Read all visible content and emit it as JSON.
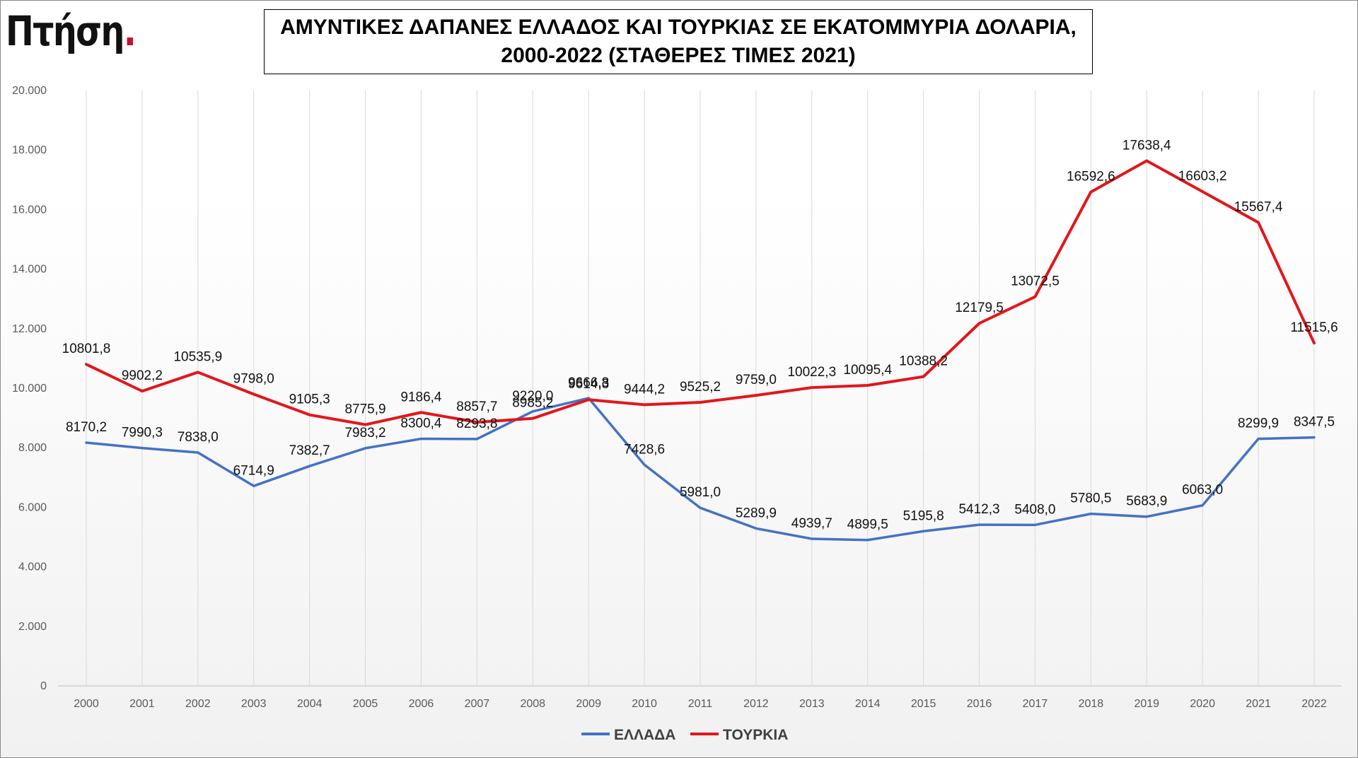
{
  "logo": {
    "text": "Πτήση",
    "dot": "."
  },
  "title": {
    "line1": "ΑΜΥΝΤΙΚΕΣ ΔΑΠΑΝΕΣ ΕΛΛΑΔΟΣ ΚΑΙ ΤΟΥΡΚΙΑΣ ΣΕ ΕΚΑΤΟΜΜΥΡΙΑ ΔΟΛΑΡΙΑ,",
    "line2": "2000-2022 (ΣΤΑΘΕΡΕΣ ΤΙΜΕΣ 2021)"
  },
  "chart_data": {
    "type": "line",
    "title": "ΑΜΥΝΤΙΚΕΣ ΔΑΠΑΝΕΣ ΕΛΛΑΔΟΣ ΚΑΙ ΤΟΥΡΚΙΑΣ ΣΕ ΕΚΑΤΟΜΜΥΡΙΑ ΔΟΛΑΡΙΑ, 2000-2022 (ΣΤΑΘΕΡΕΣ ΤΙΜΕΣ 2021)",
    "categories": [
      "2000",
      "2001",
      "2002",
      "2003",
      "2004",
      "2005",
      "2006",
      "2007",
      "2008",
      "2009",
      "2010",
      "2011",
      "2012",
      "2013",
      "2014",
      "2015",
      "2016",
      "2017",
      "2018",
      "2019",
      "2020",
      "2021",
      "2022"
    ],
    "ylim": [
      0,
      20000
    ],
    "yticks": [
      "0",
      "2.000",
      "4.000",
      "6.000",
      "8.000",
      "10.000",
      "12.000",
      "14.000",
      "16.000",
      "18.000",
      "20.000"
    ],
    "grid": "vertical",
    "legend_position": "bottom",
    "series": [
      {
        "name": "ΕΛΛΑΔΑ",
        "color": "#4472c4",
        "values": [
          8170.2,
          7990.3,
          7838.0,
          6714.9,
          7382.7,
          7983.2,
          8300.4,
          8293.8,
          9220.0,
          9666.8,
          7428.6,
          5981.0,
          5289.9,
          4939.7,
          4899.5,
          5195.8,
          5412.3,
          5408.0,
          5780.5,
          5683.9,
          6063.0,
          8299.9,
          8347.5
        ],
        "labels": [
          "8170,2",
          "7990,3",
          "7838,0",
          "6714,9",
          "7382,7",
          "7983,2",
          "8300,4",
          "8293,8",
          "9220,0",
          "9666,8",
          "7428,6",
          "5981,0",
          "5289,9",
          "4939,7",
          "4899,5",
          "5195,8",
          "5412,3",
          "5408,0",
          "5780,5",
          "5683,9",
          "6063,0",
          "8299,9",
          "8347,5"
        ]
      },
      {
        "name": "ΤΟΥΡΚΙΑ",
        "color": "#e3161b",
        "values": [
          10801.8,
          9902.2,
          10535.9,
          9798.0,
          9105.3,
          8775.9,
          9186.4,
          8857.7,
          8985.2,
          9614.3,
          9444.2,
          9525.2,
          9759.0,
          10022.3,
          10095.4,
          10388.2,
          12179.5,
          13072.5,
          16592.6,
          17638.4,
          16603.2,
          15567.4,
          11515.6
        ],
        "labels": [
          "10801,8",
          "9902,2",
          "10535,9",
          "9798,0",
          "9105,3",
          "8775,9",
          "9186,4",
          "8857,7",
          "8985,2",
          "9614,3",
          "9444,2",
          "9525,2",
          "9759,0",
          "10022,3",
          "10095,4",
          "10388,2",
          "12179,5",
          "13072,5",
          "16592,6",
          "17638,4",
          "16603,2",
          "15567,4",
          "11515,6"
        ]
      }
    ]
  }
}
